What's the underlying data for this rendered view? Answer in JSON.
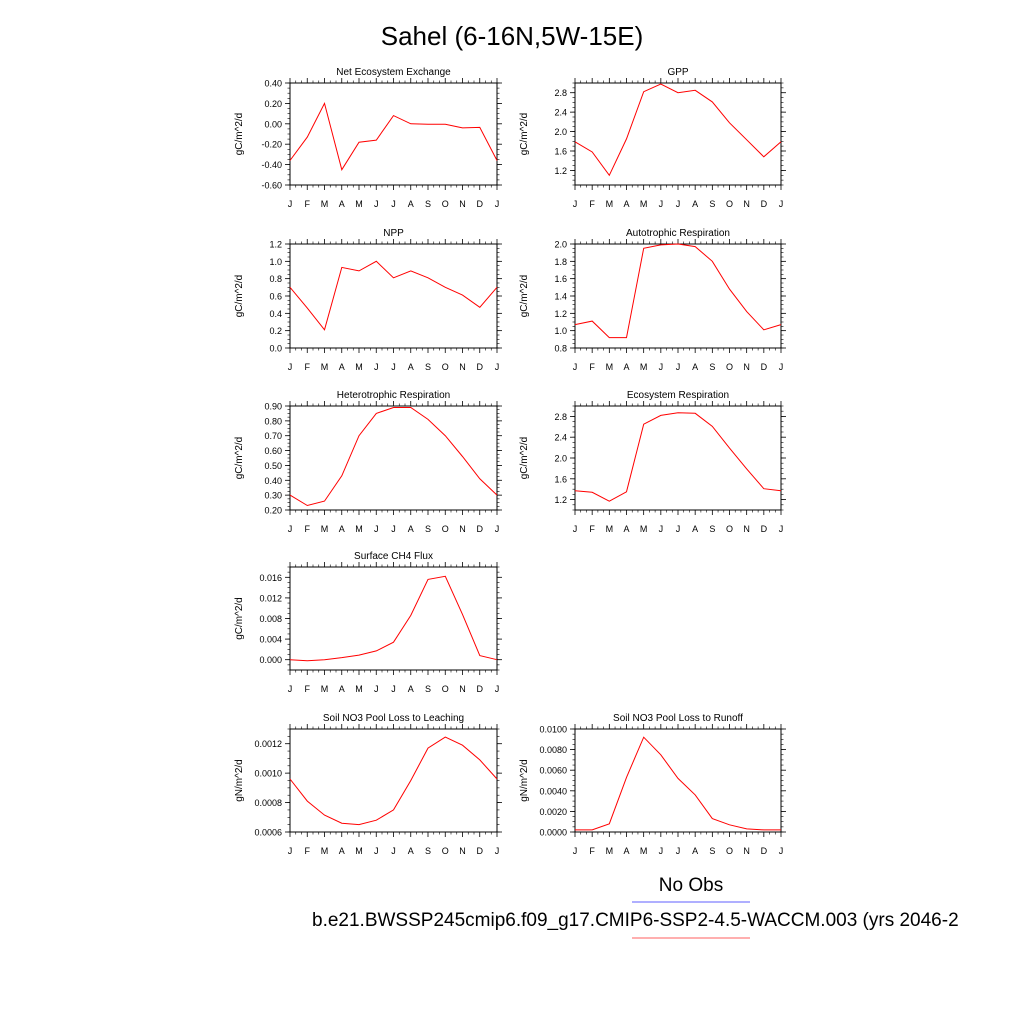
{
  "page_title": "Sahel (6-16N,5W-15E)",
  "months": [
    "J",
    "F",
    "M",
    "A",
    "M",
    "J",
    "J",
    "A",
    "S",
    "O",
    "N",
    "D",
    "J"
  ],
  "legend": {
    "obs_label": "No Obs",
    "obs_color": "#7f7fff",
    "model_label": "b.e21.BWSSP245cmip6.f09_g17.CMIP6-SSP2-4.5-WACCM.003 (yrs 2046-2",
    "model_color": "#ff7f7f"
  },
  "line_color": "#ff0000",
  "chart_data": [
    {
      "type": "line",
      "title": "Net Ecosystem Exchange",
      "ylabel": "gC/m^2/d",
      "ylim": [
        -0.6,
        0.4
      ],
      "yticks": [
        "0.40",
        "0.20",
        "0.00",
        "-0.20",
        "-0.40",
        "-0.60"
      ],
      "ytick_values": [
        0.4,
        0.2,
        0.0,
        -0.2,
        -0.4,
        -0.6
      ],
      "x": [
        "J",
        "F",
        "M",
        "A",
        "M",
        "J",
        "J",
        "A",
        "S",
        "O",
        "N",
        "D",
        "J"
      ],
      "values": [
        -0.36,
        -0.13,
        0.2,
        -0.45,
        -0.18,
        -0.16,
        0.08,
        0.0,
        -0.005,
        -0.005,
        -0.04,
        -0.035,
        -0.36
      ]
    },
    {
      "type": "line",
      "title": "GPP",
      "ylabel": "gC/m^2/d",
      "ylim": [
        0.9,
        3.0
      ],
      "yticks": [
        "2.8",
        "2.4",
        "2.0",
        "1.6",
        "1.2"
      ],
      "ytick_values": [
        2.8,
        2.4,
        2.0,
        1.6,
        1.2
      ],
      "x": [
        "J",
        "F",
        "M",
        "A",
        "M",
        "J",
        "J",
        "A",
        "S",
        "O",
        "N",
        "D",
        "J"
      ],
      "values": [
        1.79,
        1.58,
        1.1,
        1.85,
        2.82,
        2.98,
        2.8,
        2.85,
        2.61,
        2.18,
        1.83,
        1.48,
        1.79
      ]
    },
    {
      "type": "line",
      "title": "NPP",
      "ylabel": "gC/m^2/d",
      "ylim": [
        0.0,
        1.2
      ],
      "yticks": [
        "1.2",
        "1.0",
        "0.8",
        "0.6",
        "0.4",
        "0.2",
        "0.0"
      ],
      "ytick_values": [
        1.2,
        1.0,
        0.8,
        0.6,
        0.4,
        0.2,
        0.0
      ],
      "x": [
        "J",
        "F",
        "M",
        "A",
        "M",
        "J",
        "J",
        "A",
        "S",
        "O",
        "N",
        "D",
        "J"
      ],
      "values": [
        0.7,
        0.46,
        0.21,
        0.93,
        0.89,
        1.0,
        0.81,
        0.89,
        0.81,
        0.7,
        0.61,
        0.47,
        0.7
      ]
    },
    {
      "type": "line",
      "title": "Autotrophic Respiration",
      "ylabel": "gC/m^2/d",
      "ylim": [
        0.8,
        2.0
      ],
      "yticks": [
        "2.0",
        "1.8",
        "1.6",
        "1.4",
        "1.2",
        "1.0",
        "0.8"
      ],
      "ytick_values": [
        2.0,
        1.8,
        1.6,
        1.4,
        1.2,
        1.0,
        0.8
      ],
      "x": [
        "J",
        "F",
        "M",
        "A",
        "M",
        "J",
        "J",
        "A",
        "S",
        "O",
        "N",
        "D",
        "J"
      ],
      "values": [
        1.07,
        1.11,
        0.92,
        0.92,
        1.95,
        1.99,
        2.0,
        1.97,
        1.8,
        1.48,
        1.22,
        1.01,
        1.07
      ]
    },
    {
      "type": "line",
      "title": "Heterotrophic Respiration",
      "ylabel": "gC/m^2/d",
      "ylim": [
        0.2,
        0.9
      ],
      "yticks": [
        "0.90",
        "0.80",
        "0.70",
        "0.60",
        "0.50",
        "0.40",
        "0.30",
        "0.20"
      ],
      "ytick_values": [
        0.9,
        0.8,
        0.7,
        0.6,
        0.5,
        0.4,
        0.3,
        0.2
      ],
      "x": [
        "J",
        "F",
        "M",
        "A",
        "M",
        "J",
        "J",
        "A",
        "S",
        "O",
        "N",
        "D",
        "J"
      ],
      "values": [
        0.3,
        0.23,
        0.26,
        0.43,
        0.7,
        0.85,
        0.89,
        0.89,
        0.81,
        0.7,
        0.56,
        0.41,
        0.3
      ]
    },
    {
      "type": "line",
      "title": "Ecosystem Respiration",
      "ylabel": "gC/m^2/d",
      "ylim": [
        1.0,
        3.0
      ],
      "yticks": [
        "2.8",
        "2.4",
        "2.0",
        "1.6",
        "1.2"
      ],
      "ytick_values": [
        2.8,
        2.4,
        2.0,
        1.6,
        1.2
      ],
      "x": [
        "J",
        "F",
        "M",
        "A",
        "M",
        "J",
        "J",
        "A",
        "S",
        "O",
        "N",
        "D",
        "J"
      ],
      "values": [
        1.37,
        1.34,
        1.17,
        1.35,
        2.65,
        2.82,
        2.87,
        2.86,
        2.61,
        2.19,
        1.79,
        1.41,
        1.37
      ]
    },
    {
      "type": "line",
      "title": "Surface CH4 Flux",
      "ylabel": "gC/m^2/d",
      "ylim": [
        -0.002,
        0.018
      ],
      "yticks": [
        "0.016",
        "0.012",
        "0.008",
        "0.004",
        "0.000"
      ],
      "ytick_values": [
        0.016,
        0.012,
        0.008,
        0.004,
        0.0
      ],
      "x": [
        "J",
        "F",
        "M",
        "A",
        "M",
        "J",
        "J",
        "A",
        "S",
        "O",
        "N",
        "D",
        "J"
      ],
      "values": [
        0.0,
        -0.0002,
        0.0,
        0.0004,
        0.0009,
        0.0017,
        0.0034,
        0.0086,
        0.0156,
        0.0162,
        0.0088,
        0.0008,
        0.0
      ]
    },
    {
      "type": "line",
      "title": "Soil NO3 Pool Loss to Leaching",
      "ylabel": "gN/m^2/d",
      "ylim": [
        0.0006,
        0.0013
      ],
      "yticks": [
        "0.0012",
        "0.0010",
        "0.0008",
        "0.0006"
      ],
      "ytick_values": [
        0.0012,
        0.001,
        0.0008,
        0.0006
      ],
      "x": [
        "J",
        "F",
        "M",
        "A",
        "M",
        "J",
        "J",
        "A",
        "S",
        "O",
        "N",
        "D",
        "J"
      ],
      "values": [
        0.00096,
        0.00081,
        0.000715,
        0.00066,
        0.00065,
        0.00068,
        0.00075,
        0.00095,
        0.00117,
        0.001245,
        0.00119,
        0.00109,
        0.00096
      ]
    },
    {
      "type": "line",
      "title": "Soil NO3 Pool Loss to Runoff",
      "ylabel": "gN/m^2/d",
      "ylim": [
        0.0,
        0.01
      ],
      "yticks": [
        "0.0100",
        "0.0080",
        "0.0060",
        "0.0040",
        "0.0020",
        "0.0000"
      ],
      "ytick_values": [
        0.01,
        0.008,
        0.006,
        0.004,
        0.002,
        0.0
      ],
      "x": [
        "J",
        "F",
        "M",
        "A",
        "M",
        "J",
        "J",
        "A",
        "S",
        "O",
        "N",
        "D",
        "J"
      ],
      "values": [
        0.0002,
        0.0002,
        0.0008,
        0.0053,
        0.0092,
        0.0075,
        0.0052,
        0.0036,
        0.0013,
        0.0007,
        0.0003,
        0.0002,
        0.0002
      ]
    }
  ]
}
